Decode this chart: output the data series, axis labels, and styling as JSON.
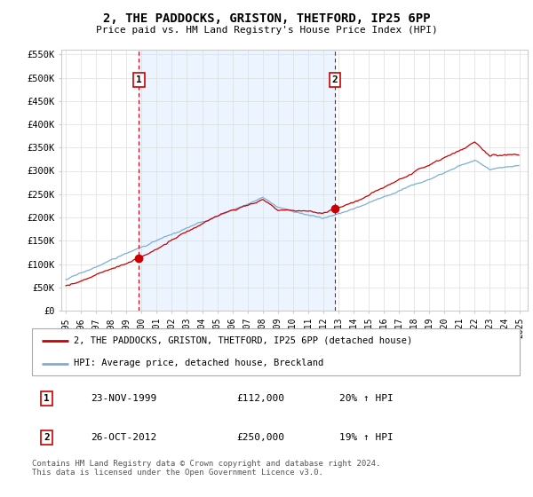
{
  "title": "2, THE PADDOCKS, GRISTON, THETFORD, IP25 6PP",
  "subtitle": "Price paid vs. HM Land Registry's House Price Index (HPI)",
  "sale1_date": "23-NOV-1999",
  "sale1_price": 112000,
  "sale1_label": "20% ↑ HPI",
  "sale1_num": "1",
  "sale2_date": "26-OCT-2012",
  "sale2_price": 250000,
  "sale2_label": "19% ↑ HPI",
  "sale2_num": "2",
  "legend_line1": "2, THE PADDOCKS, GRISTON, THETFORD, IP25 6PP (detached house)",
  "legend_line2": "HPI: Average price, detached house, Breckland",
  "footer": "Contains HM Land Registry data © Crown copyright and database right 2024.\nThis data is licensed under the Open Government Licence v3.0.",
  "red_color": "#cc0000",
  "blue_color": "#7bafd4",
  "blue_fill": "#ddeeff",
  "vline_color": "#cc0000",
  "grid_color": "#dddddd",
  "bg_color": "#ffffff",
  "ylim": [
    0,
    560000
  ],
  "yticks": [
    0,
    50000,
    100000,
    150000,
    200000,
    250000,
    300000,
    350000,
    400000,
    450000,
    500000,
    550000
  ],
  "xlim_start": 1994.7,
  "xlim_end": 2025.5
}
